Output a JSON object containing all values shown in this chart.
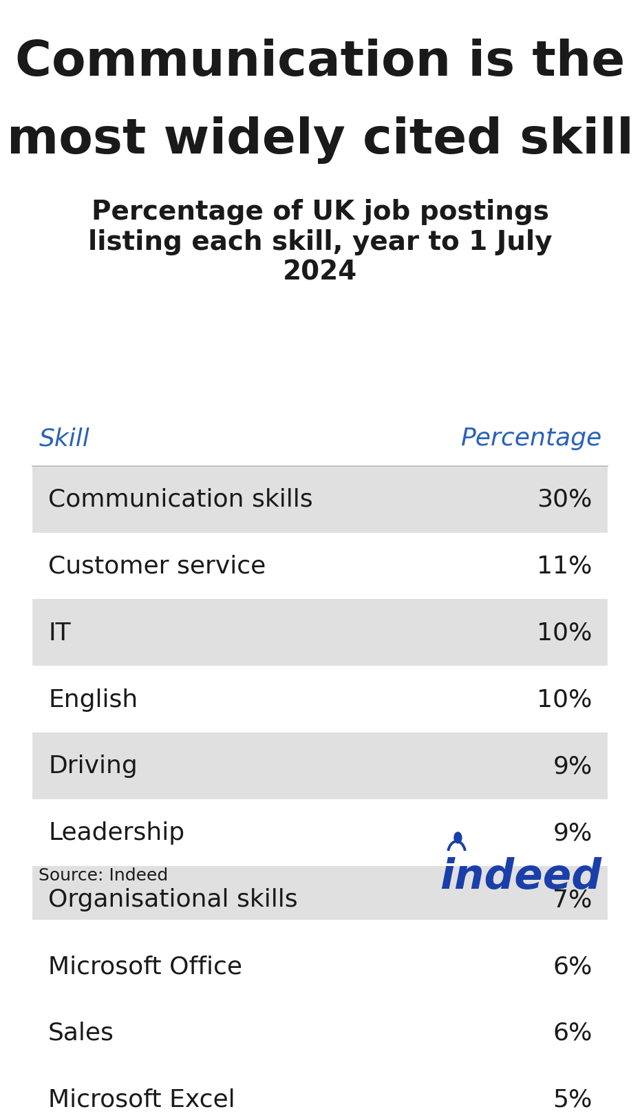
{
  "title_line1": "Communication is the",
  "title_line2": "most widely cited skill",
  "subtitle": "Percentage of UK job postings\nlisting each skill, year to 1 July\n2024",
  "header_skill": "Skill",
  "header_pct": "Percentage",
  "header_color": "#2962B8",
  "skills": [
    "Communication skills",
    "Customer service",
    "IT",
    "English",
    "Driving",
    "Leadership",
    "Organisational skills",
    "Microsoft Office",
    "Sales",
    "Microsoft Excel"
  ],
  "percentages": [
    "30%",
    "11%",
    "10%",
    "10%",
    "9%",
    "9%",
    "7%",
    "6%",
    "6%",
    "5%"
  ],
  "row_colors": [
    "#e0e0e0",
    "#ffffff",
    "#e0e0e0",
    "#ffffff",
    "#e0e0e0",
    "#ffffff",
    "#e0e0e0",
    "#ffffff",
    "#e0e0e0",
    "#ffffff"
  ],
  "title_fontsize": 52,
  "subtitle_fontsize": 28,
  "header_fontsize": 26,
  "row_fontsize": 26,
  "source_text": "Source: Indeed",
  "indeed_color": "#1a3faa",
  "background_color": "#ffffff",
  "text_color": "#1a1a1a",
  "divider_color": "#bbbbbb"
}
